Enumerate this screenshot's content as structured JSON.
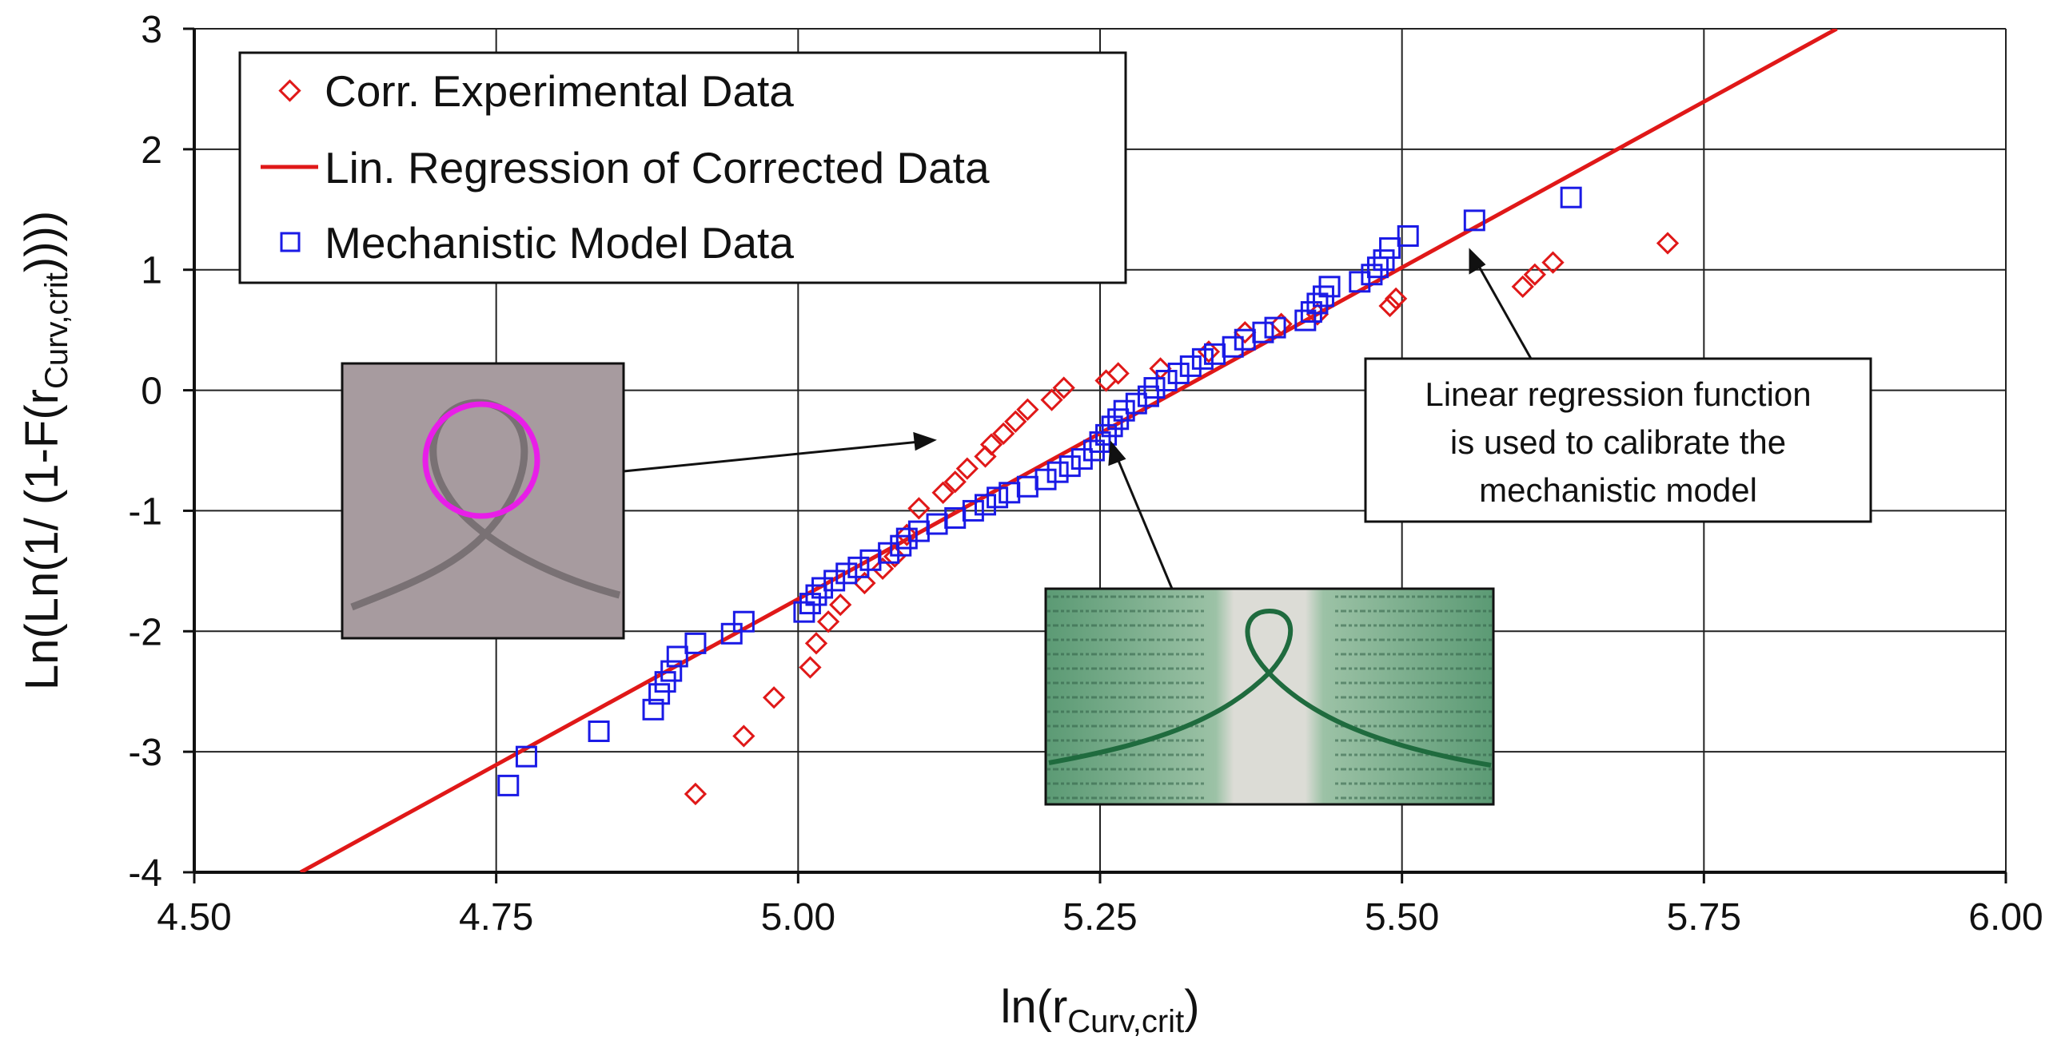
{
  "chart_data": {
    "type": "scatter",
    "xlabel": "ln(r",
    "xlabel_sub": "Curv,crit",
    "xlabel_end": ")",
    "ylabel": "Ln(Ln(1/ (1-F(r",
    "ylabel_sub": "Curv,crit",
    "ylabel_end": "))))",
    "xlim": [
      4.5,
      6.0
    ],
    "ylim": [
      -4,
      3
    ],
    "xticks": [
      "4.50",
      "4.75",
      "5.00",
      "5.25",
      "5.50",
      "5.75",
      "6.00"
    ],
    "yticks": [
      "3",
      "2",
      "1",
      "0",
      "-1",
      "-2",
      "-3",
      "-4"
    ],
    "grid": true,
    "legend_position": "top-left",
    "colors": {
      "experimental": "#e01818",
      "regression": "#e01818",
      "model": "#1a1ae6"
    },
    "series": [
      {
        "name": "Corr. Experimental Data",
        "kind": "scatter",
        "marker": "diamond",
        "points": [
          [
            4.915,
            -3.35
          ],
          [
            4.955,
            -2.87
          ],
          [
            4.98,
            -2.55
          ],
          [
            5.01,
            -2.3
          ],
          [
            5.015,
            -2.1
          ],
          [
            5.025,
            -1.92
          ],
          [
            5.035,
            -1.78
          ],
          [
            5.055,
            -1.6
          ],
          [
            5.07,
            -1.48
          ],
          [
            5.08,
            -1.38
          ],
          [
            5.09,
            -1.2
          ],
          [
            5.1,
            -0.98
          ],
          [
            5.12,
            -0.85
          ],
          [
            5.13,
            -0.76
          ],
          [
            5.14,
            -0.65
          ],
          [
            5.155,
            -0.55
          ],
          [
            5.16,
            -0.45
          ],
          [
            5.17,
            -0.36
          ],
          [
            5.18,
            -0.26
          ],
          [
            5.19,
            -0.16
          ],
          [
            5.21,
            -0.08
          ],
          [
            5.22,
            0.02
          ],
          [
            5.255,
            0.08
          ],
          [
            5.265,
            0.14
          ],
          [
            5.3,
            0.18
          ],
          [
            5.34,
            0.32
          ],
          [
            5.37,
            0.48
          ],
          [
            5.4,
            0.55
          ],
          [
            5.43,
            0.63
          ],
          [
            5.49,
            0.7
          ],
          [
            5.495,
            0.76
          ],
          [
            5.6,
            0.86
          ],
          [
            5.61,
            0.96
          ],
          [
            5.625,
            1.06
          ],
          [
            5.72,
            1.22
          ]
        ]
      },
      {
        "name": "Lin. Regression of Corrected Data",
        "kind": "line",
        "points": [
          [
            4.588,
            -4.0
          ],
          [
            5.86,
            3.0
          ]
        ]
      },
      {
        "name": "Mechanistic Model Data",
        "kind": "scatter",
        "marker": "square",
        "points": [
          [
            4.76,
            -3.28
          ],
          [
            4.775,
            -3.04
          ],
          [
            4.835,
            -2.83
          ],
          [
            4.88,
            -2.65
          ],
          [
            4.885,
            -2.52
          ],
          [
            4.89,
            -2.42
          ],
          [
            4.895,
            -2.33
          ],
          [
            4.9,
            -2.21
          ],
          [
            4.915,
            -2.1
          ],
          [
            4.945,
            -2.02
          ],
          [
            4.955,
            -1.92
          ],
          [
            5.005,
            -1.84
          ],
          [
            5.01,
            -1.77
          ],
          [
            5.015,
            -1.7
          ],
          [
            5.02,
            -1.64
          ],
          [
            5.03,
            -1.58
          ],
          [
            5.04,
            -1.52
          ],
          [
            5.05,
            -1.47
          ],
          [
            5.06,
            -1.41
          ],
          [
            5.075,
            -1.35
          ],
          [
            5.085,
            -1.29
          ],
          [
            5.09,
            -1.23
          ],
          [
            5.1,
            -1.17
          ],
          [
            5.115,
            -1.11
          ],
          [
            5.13,
            -1.06
          ],
          [
            5.145,
            -1.0
          ],
          [
            5.155,
            -0.95
          ],
          [
            5.165,
            -0.89
          ],
          [
            5.175,
            -0.85
          ],
          [
            5.19,
            -0.8
          ],
          [
            5.205,
            -0.74
          ],
          [
            5.215,
            -0.68
          ],
          [
            5.225,
            -0.63
          ],
          [
            5.235,
            -0.57
          ],
          [
            5.245,
            -0.5
          ],
          [
            5.25,
            -0.43
          ],
          [
            5.255,
            -0.37
          ],
          [
            5.26,
            -0.3
          ],
          [
            5.265,
            -0.24
          ],
          [
            5.27,
            -0.17
          ],
          [
            5.28,
            -0.11
          ],
          [
            5.29,
            -0.05
          ],
          [
            5.295,
            0.02
          ],
          [
            5.305,
            0.08
          ],
          [
            5.315,
            0.14
          ],
          [
            5.325,
            0.2
          ],
          [
            5.335,
            0.26
          ],
          [
            5.345,
            0.3
          ],
          [
            5.36,
            0.36
          ],
          [
            5.37,
            0.42
          ],
          [
            5.385,
            0.48
          ],
          [
            5.395,
            0.52
          ],
          [
            5.42,
            0.58
          ],
          [
            5.425,
            0.65
          ],
          [
            5.43,
            0.72
          ],
          [
            5.435,
            0.78
          ],
          [
            5.44,
            0.86
          ],
          [
            5.465,
            0.9
          ],
          [
            5.475,
            0.96
          ],
          [
            5.48,
            1.02
          ],
          [
            5.485,
            1.08
          ],
          [
            5.49,
            1.18
          ],
          [
            5.505,
            1.28
          ],
          [
            5.56,
            1.41
          ],
          [
            5.64,
            1.6
          ]
        ]
      }
    ],
    "annotations": [
      {
        "text": [
          "Linear regression function",
          "is used to calibrate the",
          "mechanistic model"
        ]
      }
    ]
  }
}
